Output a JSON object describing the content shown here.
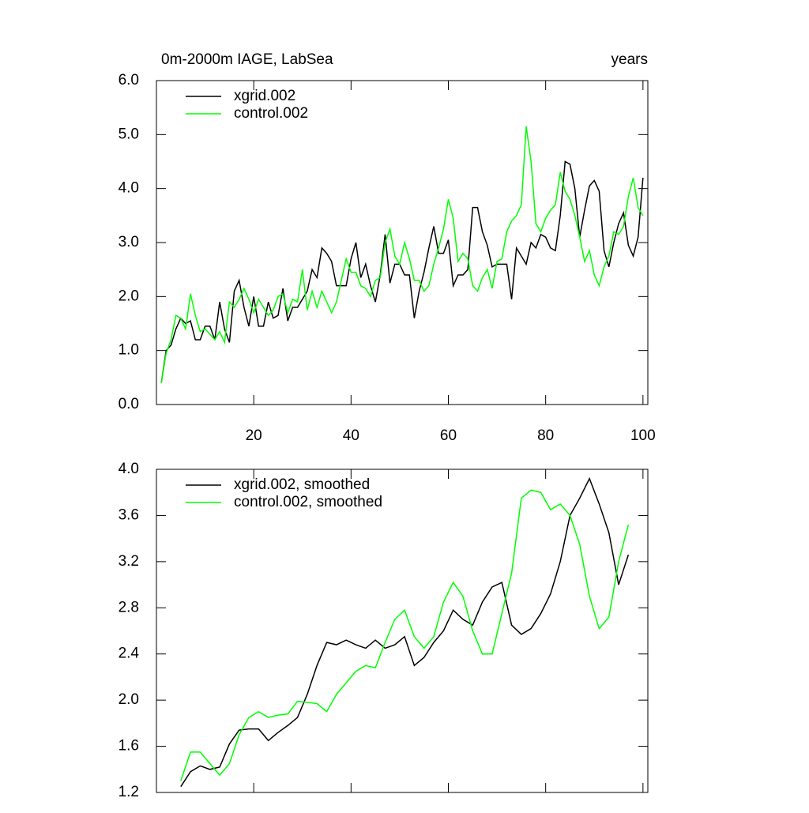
{
  "chart_data": [
    {
      "type": "line",
      "title": "0m-2000m IAGE, LabSea",
      "right_title": "years",
      "xlim": [
        0,
        101
      ],
      "xticks": [
        20,
        40,
        60,
        80,
        100
      ],
      "show_xtick_labels": true,
      "ylim": [
        0,
        6
      ],
      "yticks": [
        {
          "value": 0,
          "label": "0.0"
        },
        {
          "value": 1,
          "label": "1.0"
        },
        {
          "value": 2,
          "label": "2.0"
        },
        {
          "value": 3,
          "label": "3.0"
        },
        {
          "value": 4,
          "label": "4.0"
        },
        {
          "value": 5,
          "label": "5.0"
        },
        {
          "value": 6,
          "label": "6.0"
        }
      ],
      "x": [
        1,
        2,
        3,
        4,
        5,
        6,
        7,
        8,
        9,
        10,
        11,
        12,
        13,
        14,
        15,
        16,
        17,
        18,
        19,
        20,
        21,
        22,
        23,
        24,
        25,
        26,
        27,
        28,
        29,
        30,
        31,
        32,
        33,
        34,
        35,
        36,
        37,
        38,
        39,
        40,
        41,
        42,
        43,
        44,
        45,
        46,
        47,
        48,
        49,
        50,
        51,
        52,
        53,
        54,
        55,
        56,
        57,
        58,
        59,
        60,
        61,
        62,
        63,
        64,
        65,
        66,
        67,
        68,
        69,
        70,
        71,
        72,
        73,
        74,
        75,
        76,
        77,
        78,
        79,
        80,
        81,
        82,
        83,
        84,
        85,
        86,
        87,
        88,
        89,
        90,
        91,
        92,
        93,
        94,
        95,
        96,
        97,
        98,
        99,
        100
      ],
      "series": [
        {
          "name": "xgrid.002",
          "color": "#000000",
          "values": [
            0.4,
            1.0,
            1.1,
            1.4,
            1.6,
            1.5,
            1.55,
            1.2,
            1.2,
            1.45,
            1.45,
            1.2,
            1.9,
            1.4,
            1.15,
            2.1,
            2.3,
            1.8,
            1.45,
            2.0,
            1.45,
            1.45,
            1.9,
            1.6,
            1.65,
            2.15,
            1.55,
            1.8,
            1.8,
            1.95,
            2.1,
            2.5,
            2.35,
            2.9,
            2.8,
            2.65,
            2.2,
            2.2,
            2.2,
            2.7,
            3.0,
            2.35,
            2.6,
            2.2,
            1.9,
            2.4,
            3.15,
            2.25,
            2.6,
            2.6,
            2.4,
            2.4,
            1.6,
            2.1,
            2.45,
            2.9,
            3.3,
            2.8,
            2.8,
            3.05,
            2.2,
            2.4,
            2.4,
            2.5,
            3.65,
            3.65,
            3.2,
            2.95,
            2.55,
            2.6,
            2.6,
            2.6,
            1.95,
            2.9,
            2.75,
            2.6,
            3.0,
            2.9,
            3.15,
            3.1,
            2.9,
            2.85,
            3.5,
            4.5,
            4.45,
            4.0,
            3.1,
            3.6,
            4.05,
            4.15,
            3.95,
            2.85,
            2.55,
            3.0,
            3.35,
            3.55,
            2.95,
            2.75,
            3.1,
            4.2
          ]
        },
        {
          "name": "control.002",
          "color": "#00ff00",
          "values": [
            0.4,
            0.95,
            1.2,
            1.65,
            1.6,
            1.4,
            2.05,
            1.65,
            1.35,
            1.4,
            1.3,
            1.2,
            1.35,
            1.15,
            1.9,
            1.8,
            1.95,
            2.15,
            1.95,
            1.7,
            1.95,
            1.8,
            1.65,
            1.75,
            2.0,
            2.05,
            1.7,
            1.95,
            1.9,
            2.5,
            1.75,
            2.1,
            1.8,
            2.1,
            1.9,
            1.7,
            1.9,
            2.3,
            2.7,
            2.45,
            2.45,
            2.2,
            2.15,
            2.0,
            2.3,
            2.35,
            3.0,
            3.25,
            2.75,
            2.6,
            3.0,
            2.7,
            2.3,
            2.3,
            2.1,
            2.2,
            2.6,
            2.9,
            3.25,
            3.8,
            3.45,
            2.65,
            2.8,
            2.7,
            2.2,
            2.1,
            2.35,
            2.5,
            2.15,
            2.65,
            2.7,
            3.2,
            3.4,
            3.5,
            3.7,
            5.15,
            4.5,
            3.35,
            3.2,
            3.45,
            3.6,
            3.7,
            4.3,
            3.95,
            3.8,
            3.5,
            3.1,
            2.65,
            2.85,
            2.4,
            2.2,
            2.55,
            2.75,
            3.2,
            3.15,
            3.3,
            3.85,
            4.2,
            3.65,
            3.5
          ]
        }
      ]
    },
    {
      "type": "line",
      "xlim": [
        0,
        101
      ],
      "xticks": [
        20,
        40,
        60,
        80,
        100
      ],
      "show_xtick_labels": false,
      "ylim": [
        1.2,
        4.0
      ],
      "yticks": [
        1.2,
        1.6,
        {
          "value": 2.0,
          "label": "2.0"
        },
        2.4,
        2.8,
        3.2,
        3.6,
        {
          "value": 4.0,
          "label": "4.0"
        }
      ],
      "x": [
        5,
        7,
        9,
        11,
        13,
        15,
        17,
        19,
        21,
        23,
        25,
        27,
        29,
        31,
        33,
        35,
        37,
        39,
        41,
        43,
        45,
        47,
        49,
        51,
        53,
        55,
        57,
        59,
        61,
        63,
        65,
        67,
        69,
        71,
        73,
        75,
        77,
        79,
        81,
        83,
        85,
        87,
        89,
        91,
        93,
        95,
        97
      ],
      "series": [
        {
          "name": "xgrid.002, smoothed",
          "color": "#000000",
          "values": [
            1.25,
            1.38,
            1.43,
            1.4,
            1.42,
            1.62,
            1.74,
            1.75,
            1.75,
            1.65,
            1.72,
            1.78,
            1.85,
            2.05,
            2.3,
            2.5,
            2.48,
            2.52,
            2.48,
            2.45,
            2.52,
            2.45,
            2.48,
            2.55,
            2.3,
            2.37,
            2.5,
            2.6,
            2.78,
            2.7,
            2.65,
            2.85,
            2.98,
            3.02,
            2.65,
            2.57,
            2.62,
            2.75,
            2.92,
            3.2,
            3.6,
            3.75,
            3.92,
            3.7,
            3.45,
            3.0,
            3.26
          ]
        },
        {
          "name": "control.002, smoothed",
          "color": "#00ff00",
          "values": [
            1.3,
            1.55,
            1.55,
            1.45,
            1.35,
            1.45,
            1.7,
            1.85,
            1.9,
            1.85,
            1.87,
            1.88,
            1.99,
            1.98,
            1.97,
            1.9,
            2.05,
            2.15,
            2.25,
            2.3,
            2.28,
            2.5,
            2.7,
            2.78,
            2.55,
            2.45,
            2.55,
            2.85,
            3.02,
            2.9,
            2.6,
            2.4,
            2.4,
            2.75,
            3.1,
            3.75,
            3.82,
            3.8,
            3.65,
            3.7,
            3.6,
            3.35,
            2.9,
            2.62,
            2.72,
            3.2,
            3.52
          ]
        }
      ]
    }
  ]
}
